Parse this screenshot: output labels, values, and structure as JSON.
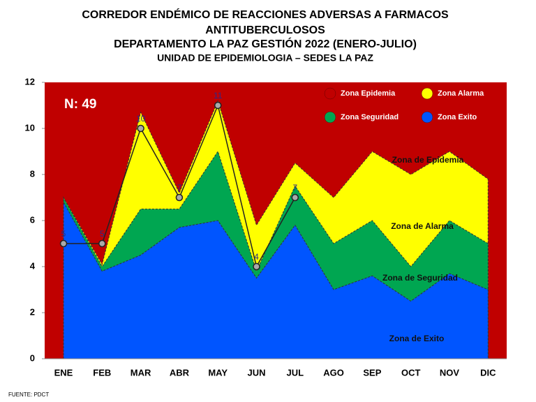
{
  "chart_data": {
    "type": "area",
    "title": "CORREDOR ENDÉMICO DE REACCIONES ADVERSAS  A FARMACOS",
    "title_line2": "ANTITUBERCULOSOS",
    "subtitle": "DEPARTAMENTO  LA PAZ GESTIÓN 2022 (ENERO-JULIO)",
    "subtitle2": "UNIDAD DE EPIDEMIOLOGIA – SEDES LA PAZ",
    "n_label": "N: 49",
    "source": "FUENTE:  PDCT",
    "categories": [
      "ENE",
      "FEB",
      "MAR",
      "ABR",
      "MAY",
      "JUN",
      "JUL",
      "AGO",
      "SEP",
      "OCT",
      "NOV",
      "DIC"
    ],
    "ylim": [
      0,
      12
    ],
    "yticks": [
      0,
      2,
      4,
      6,
      8,
      10,
      12
    ],
    "epidemia_zone": {
      "name": "Zona Epidemia",
      "color": "#c00000"
    },
    "series": [
      {
        "name": "Zona Alarma",
        "color": "#ffff00",
        "values": [
          7.0,
          4.1,
          10.7,
          7.2,
          11.2,
          5.8,
          8.5,
          7.0,
          9.0,
          8.0,
          9.0,
          7.8
        ]
      },
      {
        "name": "Zona Seguridad",
        "color": "#00a651",
        "values": [
          7.0,
          4.0,
          6.5,
          6.5,
          9.0,
          3.8,
          7.5,
          5.0,
          6.0,
          4.0,
          6.0,
          5.0
        ]
      },
      {
        "name": "Zona Exito",
        "color": "#0055ff",
        "values": [
          6.8,
          3.8,
          4.5,
          5.7,
          6.0,
          3.5,
          5.8,
          3.0,
          3.6,
          2.5,
          3.7,
          3.0
        ]
      }
    ],
    "cases": {
      "color": "#222222",
      "values": [
        5,
        5,
        10,
        7,
        11,
        4,
        7,
        null,
        null,
        null,
        null,
        null
      ]
    },
    "annotations": [
      "Zona de Epidemia",
      "Zona de Alarma",
      "Zona de Seguridad",
      "Zona de Exito"
    ]
  }
}
